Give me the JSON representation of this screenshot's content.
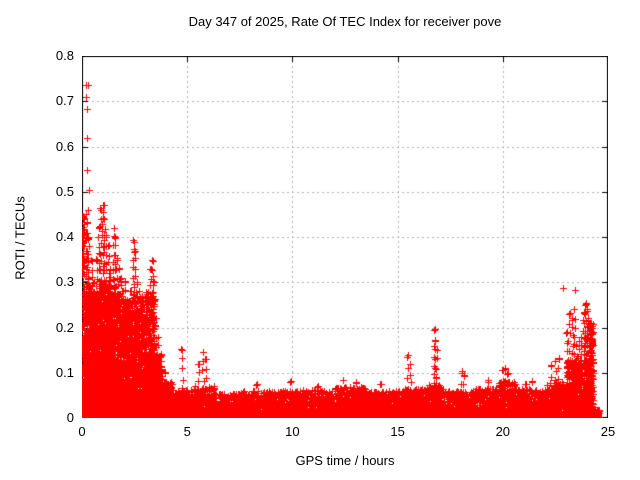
{
  "chart_data": {
    "type": "scatter",
    "title": "Day 347 of 2025, Rate Of TEC Index for receiver pove",
    "xlabel": "GPS time / hours",
    "ylabel": "ROTI / TECUs",
    "xlim": [
      0,
      25
    ],
    "ylim": [
      0,
      0.8
    ],
    "xticks": [
      0,
      5,
      10,
      15,
      20,
      25
    ],
    "yticks": [
      0,
      0.1,
      0.2,
      0.3,
      0.4,
      0.5,
      0.6,
      0.7,
      0.8
    ],
    "ytick_labels": [
      "0",
      "0.1",
      "0.2",
      "0.3",
      "0.4",
      "0.5",
      "0.6",
      "0.7",
      "0.8"
    ],
    "grid": "dashed",
    "grid_color": "#b0b0b0",
    "frame_color": "#000000",
    "marker": "plus",
    "marker_color": "#ff0000",
    "legend": "none",
    "seed": 347,
    "baseline_segments": [
      [
        0.0,
        0.1,
        150,
        0.45,
        1.3
      ],
      [
        0.1,
        0.35,
        350,
        0.3,
        2.0
      ],
      [
        0.35,
        0.8,
        700,
        0.28,
        2.2
      ],
      [
        0.8,
        1.35,
        900,
        0.3,
        2.2
      ],
      [
        1.35,
        1.8,
        650,
        0.28,
        2.2
      ],
      [
        1.8,
        2.4,
        700,
        0.26,
        2.3
      ],
      [
        2.4,
        3.0,
        650,
        0.27,
        2.3
      ],
      [
        3.0,
        3.45,
        500,
        0.28,
        2.2
      ],
      [
        3.45,
        3.8,
        250,
        0.14,
        2.0
      ],
      [
        3.8,
        4.3,
        200,
        0.08,
        1.8
      ],
      [
        4.3,
        5.3,
        280,
        0.062,
        1.8
      ],
      [
        5.3,
        6.3,
        300,
        0.07,
        1.9
      ],
      [
        6.3,
        7.5,
        350,
        0.055,
        1.8
      ],
      [
        7.5,
        9.0,
        430,
        0.06,
        1.8
      ],
      [
        9.0,
        10.5,
        430,
        0.06,
        1.8
      ],
      [
        10.5,
        12.0,
        430,
        0.062,
        1.8
      ],
      [
        12.0,
        13.5,
        430,
        0.068,
        1.8
      ],
      [
        13.5,
        15.2,
        480,
        0.06,
        1.8
      ],
      [
        15.2,
        16.4,
        350,
        0.065,
        1.8
      ],
      [
        16.4,
        17.2,
        250,
        0.075,
        1.8
      ],
      [
        17.2,
        18.6,
        380,
        0.06,
        1.8
      ],
      [
        18.6,
        19.8,
        340,
        0.065,
        1.8
      ],
      [
        19.8,
        20.6,
        260,
        0.08,
        1.8
      ],
      [
        20.6,
        22.1,
        420,
        0.065,
        1.8
      ],
      [
        22.1,
        23.0,
        300,
        0.08,
        1.8
      ],
      [
        23.0,
        24.15,
        500,
        0.13,
        1.6
      ],
      [
        24.1,
        24.3,
        150,
        0.21,
        1.4
      ],
      [
        23.9,
        24.6,
        200,
        0.02,
        2.0
      ]
    ],
    "spikes": [
      [
        0.2,
        0.45
      ],
      [
        0.25,
        0.43
      ],
      [
        0.3,
        0.4
      ],
      [
        0.45,
        0.35
      ],
      [
        0.55,
        0.3
      ],
      [
        0.7,
        0.35
      ],
      [
        0.8,
        0.42
      ],
      [
        0.9,
        0.46
      ],
      [
        1.0,
        0.47
      ],
      [
        1.05,
        0.44
      ],
      [
        1.15,
        0.4
      ],
      [
        1.25,
        0.38
      ],
      [
        1.35,
        0.33
      ],
      [
        1.5,
        0.42
      ],
      [
        1.55,
        0.4
      ],
      [
        1.65,
        0.35
      ],
      [
        1.75,
        0.33
      ],
      [
        1.85,
        0.31
      ],
      [
        1.95,
        0.28
      ],
      [
        2.05,
        0.3
      ],
      [
        2.15,
        0.26
      ],
      [
        2.3,
        0.28
      ],
      [
        2.45,
        0.39
      ],
      [
        2.5,
        0.37
      ],
      [
        2.6,
        0.3
      ],
      [
        2.7,
        0.28
      ],
      [
        2.8,
        0.26
      ],
      [
        2.95,
        0.24
      ],
      [
        3.05,
        0.27
      ],
      [
        3.15,
        0.25
      ],
      [
        3.25,
        0.33
      ],
      [
        3.35,
        0.35
      ],
      [
        3.4,
        0.3
      ],
      [
        3.5,
        0.22
      ],
      [
        3.6,
        0.18
      ],
      [
        3.75,
        0.14
      ],
      [
        3.95,
        0.1
      ],
      [
        4.75,
        0.15
      ],
      [
        5.55,
        0.12
      ],
      [
        5.75,
        0.145
      ],
      [
        5.85,
        0.13
      ],
      [
        8.3,
        0.075
      ],
      [
        9.9,
        0.08
      ],
      [
        11.2,
        0.07
      ],
      [
        12.4,
        0.085
      ],
      [
        13.0,
        0.08
      ],
      [
        14.2,
        0.075
      ],
      [
        15.45,
        0.135
      ],
      [
        15.6,
        0.12
      ],
      [
        16.75,
        0.195
      ],
      [
        16.8,
        0.17
      ],
      [
        16.85,
        0.15
      ],
      [
        18.05,
        0.1
      ],
      [
        18.15,
        0.095
      ],
      [
        19.3,
        0.08
      ],
      [
        20.0,
        0.105
      ],
      [
        20.1,
        0.11
      ],
      [
        20.25,
        0.1
      ],
      [
        21.1,
        0.075
      ],
      [
        21.4,
        0.08
      ],
      [
        22.3,
        0.115
      ],
      [
        22.5,
        0.125
      ],
      [
        22.65,
        0.13
      ],
      [
        23.05,
        0.19
      ],
      [
        23.15,
        0.23
      ],
      [
        23.3,
        0.22
      ],
      [
        23.4,
        0.24
      ],
      [
        23.5,
        0.16
      ],
      [
        23.6,
        0.17
      ],
      [
        23.7,
        0.18
      ],
      [
        23.85,
        0.235
      ],
      [
        23.9,
        0.25
      ],
      [
        23.95,
        0.255
      ],
      [
        24.0,
        0.24
      ],
      [
        24.05,
        0.22
      ],
      [
        24.1,
        0.21
      ],
      [
        24.2,
        0.21
      ]
    ],
    "outliers": [
      [
        0.2,
        0.737
      ],
      [
        0.27,
        0.735
      ],
      [
        0.21,
        0.709
      ],
      [
        0.24,
        0.683
      ],
      [
        0.24,
        0.619
      ],
      [
        0.24,
        0.548
      ],
      [
        0.33,
        0.504
      ],
      [
        0.28,
        0.46
      ],
      [
        22.85,
        0.287
      ],
      [
        23.43,
        0.282
      ]
    ]
  }
}
